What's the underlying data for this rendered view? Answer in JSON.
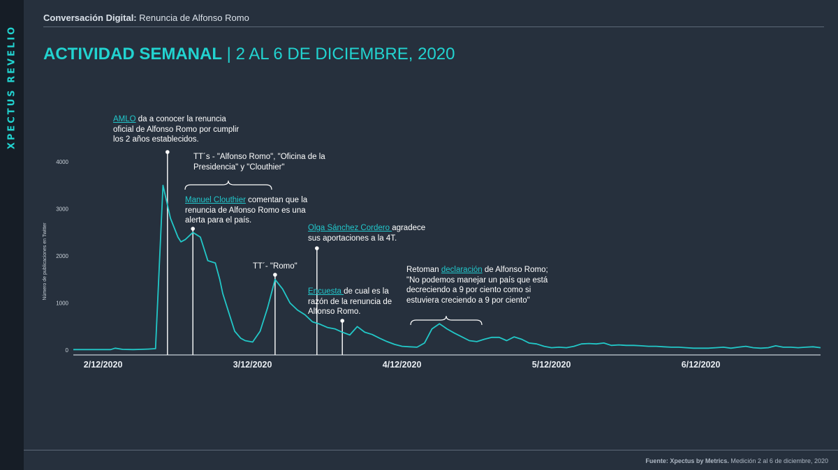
{
  "brand": "XPECTUS REVELIO",
  "header": {
    "label": "Conversación Digital:",
    "topic": "Renuncia de Alfonso Romo"
  },
  "title": {
    "main": "ACTIVIDAD SEMANAL",
    "separator": "|",
    "dates": "2 AL 6 DE DICIEMBRE, 2020"
  },
  "footer": {
    "source_label": "Fuente: Xpectus by Metrics.",
    "source_text": "Medición 2 al 6 de diciembre, 2020"
  },
  "annotations": {
    "amlo": {
      "link": "AMLO",
      "text": " da a conocer la renuncia oficial de  Alfonso Romo por cumplir los 2 años establecidos."
    },
    "tts": {
      "text": "TT´s - \"Alfonso Romo\", \"Oficina de la Presidencia\" y \"Clouthier\""
    },
    "clouthier": {
      "link": "Manuel Clouthier",
      "text": " comentan que la renuncia de Alfonso Romo es una alerta para el país."
    },
    "tt_romo": {
      "text": "TT´- \"Romo\""
    },
    "olga": {
      "link": "Olga Sánchez Cordero ",
      "text": "agradece sus aportaciones a la 4T."
    },
    "encuesta": {
      "link": "Encuesta ",
      "text": "de cual es la razón de la renuncia de Alfonso Romo."
    },
    "declaracion": {
      "pre": "Retoman ",
      "link": "declaración",
      "text": " de Alfonso Romo; \"No podemos manejar un país que está decreciendo a 9 por ciento como si estuviera creciendo a 9 por ciento\""
    }
  },
  "chart_data": {
    "type": "line",
    "ylabel": "Número de publicaciones en Twitter",
    "yticks": [
      0,
      1000,
      2000,
      3000,
      4000
    ],
    "ylim": [
      0,
      4200
    ],
    "xlim": [
      0,
      5
    ],
    "xticks": [
      {
        "x": 0.2,
        "label": "2/12/2020"
      },
      {
        "x": 1.2,
        "label": "3/12/2020"
      },
      {
        "x": 2.2,
        "label": "4/12/2020"
      },
      {
        "x": 3.2,
        "label": "5/12/2020"
      },
      {
        "x": 4.2,
        "label": "6/12/2020"
      }
    ],
    "line_color": "#22c8c8",
    "series": [
      {
        "x": [
          0,
          0.05,
          0.1,
          0.15,
          0.2,
          0.25,
          0.28,
          0.33,
          0.4,
          0.45,
          0.5,
          0.55,
          0.6,
          0.65,
          0.7,
          0.72,
          0.75,
          0.8,
          0.85,
          0.9,
          0.95,
          0.98,
          1.0,
          1.05,
          1.08,
          1.12,
          1.15,
          1.2,
          1.25,
          1.3,
          1.35,
          1.4,
          1.45,
          1.5,
          1.55,
          1.6,
          1.65,
          1.7,
          1.75,
          1.8,
          1.85,
          1.9,
          1.95,
          2.0,
          2.05,
          2.1,
          2.15,
          2.2,
          2.25,
          2.3,
          2.35,
          2.4,
          2.45,
          2.5,
          2.55,
          2.6,
          2.65,
          2.7,
          2.75,
          2.8,
          2.85,
          2.9,
          2.95,
          3.0,
          3.05,
          3.1,
          3.15,
          3.2,
          3.25,
          3.3,
          3.35,
          3.4,
          3.45,
          3.5,
          3.55,
          3.6,
          3.65,
          3.7,
          3.75,
          3.8,
          3.85,
          3.9,
          3.95,
          4.0,
          4.05,
          4.1,
          4.15,
          4.2,
          4.25,
          4.3,
          4.35,
          4.4,
          4.45,
          4.5,
          4.55,
          4.6,
          4.65,
          4.7,
          4.75,
          4.8,
          4.85,
          4.9,
          4.95,
          5.0
        ],
        "y": [
          10,
          10,
          10,
          10,
          10,
          10,
          40,
          15,
          10,
          15,
          20,
          30,
          3500,
          2800,
          2400,
          2300,
          2350,
          2500,
          2400,
          1900,
          1850,
          1500,
          1200,
          700,
          400,
          250,
          200,
          170,
          400,
          900,
          1500,
          1300,
          1000,
          850,
          750,
          600,
          550,
          480,
          450,
          380,
          320,
          500,
          380,
          330,
          250,
          180,
          120,
          80,
          70,
          60,
          150,
          450,
          560,
          450,
          360,
          280,
          200,
          180,
          230,
          270,
          270,
          200,
          280,
          230,
          150,
          130,
          80,
          50,
          60,
          50,
          80,
          130,
          140,
          130,
          150,
          100,
          110,
          100,
          100,
          90,
          80,
          80,
          70,
          60,
          60,
          50,
          40,
          40,
          40,
          50,
          60,
          40,
          60,
          80,
          50,
          40,
          50,
          90,
          60,
          60,
          50,
          60,
          70,
          50
        ],
        "color": "#22c8c8"
      }
    ],
    "event_markers": [
      0.63,
      0.8,
      1.35,
      1.63,
      1.8
    ]
  }
}
